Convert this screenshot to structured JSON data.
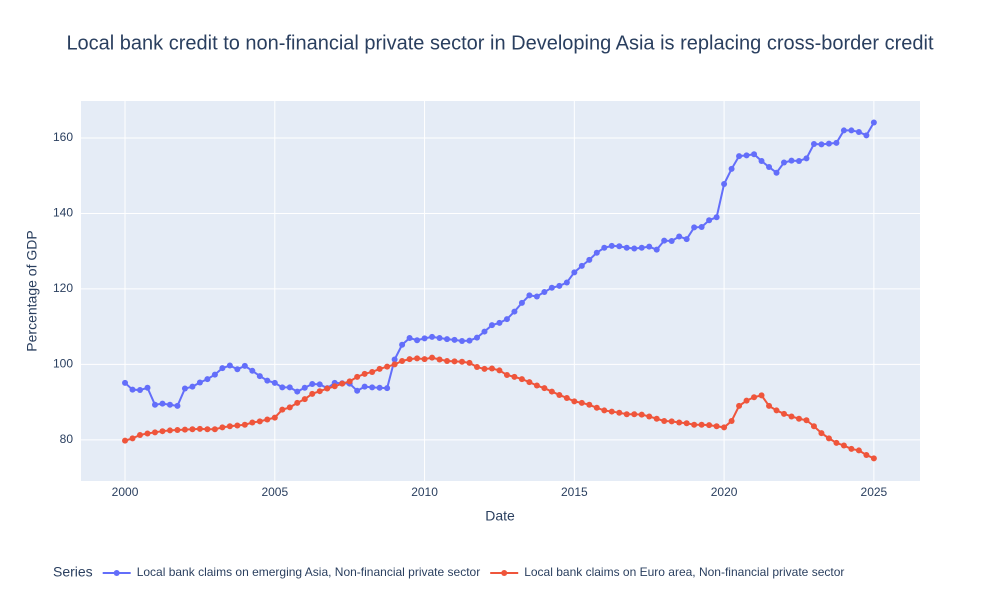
{
  "chart_data": {
    "type": "line",
    "title": "Local bank credit to non-financial private sector in Developing Asia is replacing cross-border credit",
    "x_label": "Date",
    "y_label": "Percentage of GDP",
    "legend_title": "Series",
    "legend_position": "bottom",
    "grid": true,
    "x": [
      2000,
      2000.25,
      2000.5,
      2000.75,
      2001,
      2001.25,
      2001.5,
      2001.75,
      2002,
      2002.25,
      2002.5,
      2002.75,
      2003,
      2003.25,
      2003.5,
      2003.75,
      2004,
      2004.25,
      2004.5,
      2004.75,
      2005,
      2005.25,
      2005.5,
      2005.75,
      2006,
      2006.25,
      2006.5,
      2006.75,
      2007,
      2007.25,
      2007.5,
      2007.75,
      2008,
      2008.25,
      2008.5,
      2008.75,
      2009,
      2009.25,
      2009.5,
      2009.75,
      2010,
      2010.25,
      2010.5,
      2010.75,
      2011,
      2011.25,
      2011.5,
      2011.75,
      2012,
      2012.25,
      2012.5,
      2012.75,
      2013,
      2013.25,
      2013.5,
      2013.75,
      2014,
      2014.25,
      2014.5,
      2014.75,
      2015,
      2015.25,
      2015.5,
      2015.75,
      2016,
      2016.25,
      2016.5,
      2016.75,
      2017,
      2017.25,
      2017.5,
      2017.75,
      2018,
      2018.25,
      2018.5,
      2018.75,
      2019,
      2019.25,
      2019.5,
      2019.75,
      2020,
      2020.25,
      2020.5,
      2020.75,
      2021,
      2021.25,
      2021.5,
      2021.75,
      2022,
      2022.25,
      2022.5,
      2022.75,
      2023,
      2023.25,
      2023.5,
      2023.75,
      2024,
      2024.25,
      2024.5,
      2024.75,
      2025
    ],
    "xlim": [
      1998.53,
      2026.54
    ],
    "xticks": [
      2000,
      2005,
      2010,
      2015,
      2020,
      2025
    ],
    "ylim": [
      69.1,
      169.8
    ],
    "yticks": [
      80,
      100,
      120,
      140,
      160
    ],
    "series": [
      {
        "name": "Local bank claims on emerging Asia, Non-financial private sector",
        "color": "#636efa",
        "values": [
          95.1,
          93.3,
          93.2,
          93.8,
          89.3,
          89.6,
          89.3,
          89.0,
          93.6,
          94.1,
          95.2,
          96.1,
          97.3,
          99.0,
          99.7,
          98.7,
          99.6,
          98.3,
          96.9,
          95.7,
          95.1,
          93.9,
          93.9,
          92.8,
          93.8,
          94.8,
          94.7,
          93.7,
          95.1,
          95.0,
          94.9,
          93.0,
          94.1,
          93.9,
          93.8,
          93.7,
          101.3,
          105.2,
          107.0,
          106.4,
          106.9,
          107.3,
          107.0,
          106.7,
          106.5,
          106.2,
          106.3,
          107.1,
          108.7,
          110.4,
          111.0,
          112.0,
          114.0,
          116.3,
          118.3,
          118.0,
          119.2,
          120.3,
          120.8,
          121.7,
          124.4,
          126.1,
          127.7,
          129.6,
          130.9,
          131.4,
          131.3,
          130.9,
          130.7,
          130.9,
          131.2,
          130.4,
          132.8,
          132.7,
          133.9,
          133.2,
          136.3,
          136.4,
          138.2,
          139.0,
          147.8,
          151.8,
          155.2,
          155.4,
          155.7,
          153.9,
          152.3,
          150.8,
          153.5,
          154.0,
          153.9,
          154.6,
          158.4,
          158.3,
          158.5,
          158.7,
          162.0,
          162.0,
          161.6,
          160.7,
          164.1
        ]
      },
      {
        "name": "Local bank claims on Euro area, Non-financial private sector",
        "color": "#ef553b",
        "values": [
          79.8,
          80.4,
          81.3,
          81.7,
          82.0,
          82.3,
          82.5,
          82.6,
          82.7,
          82.8,
          82.9,
          82.8,
          82.8,
          83.3,
          83.6,
          83.8,
          84.0,
          84.6,
          84.9,
          85.4,
          85.9,
          88.0,
          88.6,
          89.8,
          90.8,
          92.2,
          92.9,
          93.6,
          94.2,
          94.9,
          95.5,
          96.7,
          97.5,
          98.0,
          98.8,
          99.4,
          100.0,
          100.9,
          101.4,
          101.6,
          101.4,
          101.8,
          101.3,
          100.9,
          100.8,
          100.7,
          100.4,
          99.3,
          98.8,
          98.9,
          98.4,
          97.2,
          96.7,
          96.1,
          95.3,
          94.4,
          93.7,
          92.8,
          91.9,
          91.1,
          90.2,
          89.8,
          89.3,
          88.5,
          87.8,
          87.5,
          87.2,
          86.8,
          86.8,
          86.7,
          86.2,
          85.6,
          85.0,
          84.9,
          84.6,
          84.4,
          84.0,
          84.0,
          83.9,
          83.6,
          83.3,
          85.0,
          89.0,
          90.4,
          91.3,
          91.8,
          89.0,
          87.8,
          86.9,
          86.2,
          85.6,
          85.2,
          83.6,
          81.8,
          80.4,
          79.2,
          78.5,
          77.6,
          77.2,
          76.0,
          75.1
        ]
      }
    ]
  }
}
